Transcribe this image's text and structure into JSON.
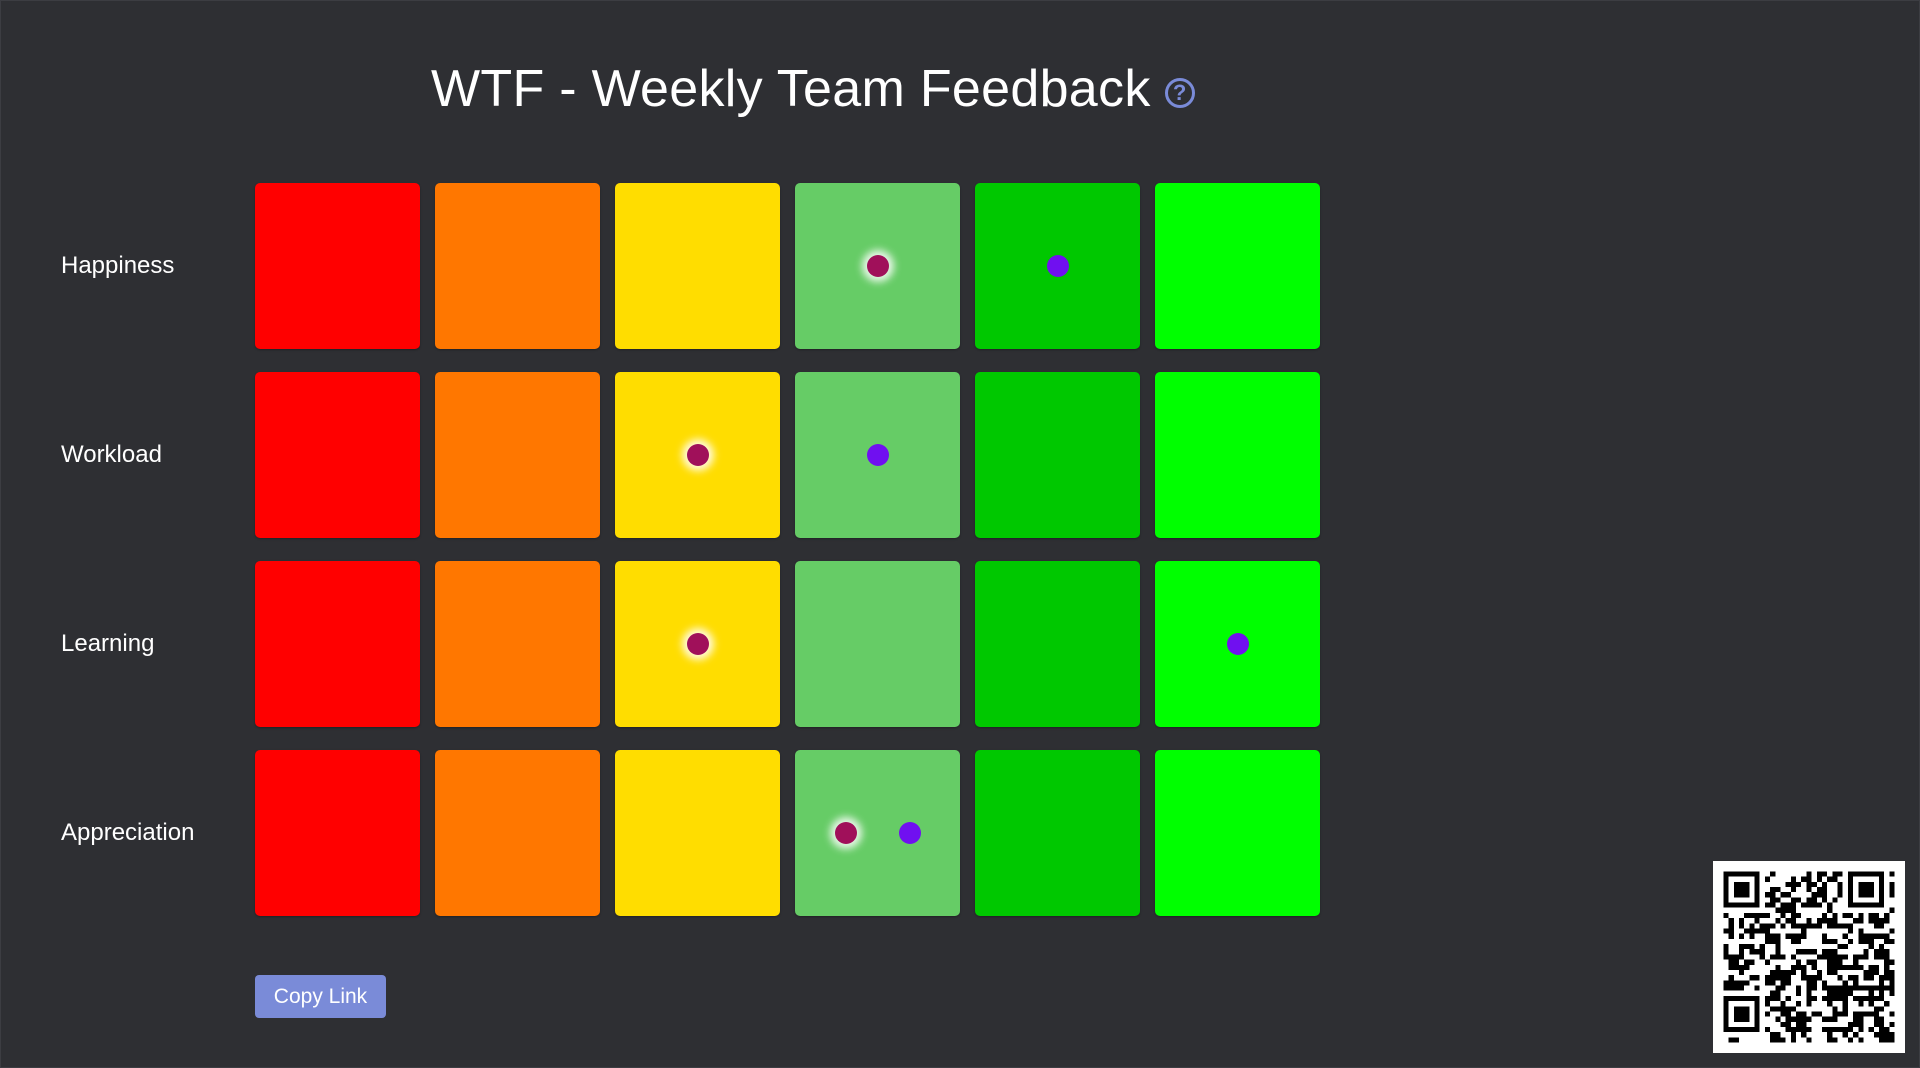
{
  "header": {
    "title": "WTF - Weekly Team Feedback",
    "help_icon": "question-circle-icon"
  },
  "colors": {
    "background": "#2e2f33",
    "accent": "#7a8bd8",
    "scale": [
      "#ff0000",
      "#ff7700",
      "#ffdd00",
      "#66cc66",
      "#00c800",
      "#00ff00"
    ],
    "self_dot": "#a0105a",
    "other_dot": "#7010f0"
  },
  "rows": [
    {
      "label": "Happiness",
      "votes": [
        {
          "level": 4,
          "who": "self"
        },
        {
          "level": 5,
          "who": "other"
        }
      ]
    },
    {
      "label": "Workload",
      "votes": [
        {
          "level": 3,
          "who": "self"
        },
        {
          "level": 4,
          "who": "other"
        }
      ]
    },
    {
      "label": "Learning",
      "votes": [
        {
          "level": 3,
          "who": "self"
        },
        {
          "level": 6,
          "who": "other"
        }
      ]
    },
    {
      "label": "Appreciation",
      "votes": [
        {
          "level": 4,
          "who": "self"
        },
        {
          "level": 4,
          "who": "other"
        }
      ]
    }
  ],
  "actions": {
    "copy_label": "Copy Link"
  },
  "qr_icon": "qr-code-icon"
}
